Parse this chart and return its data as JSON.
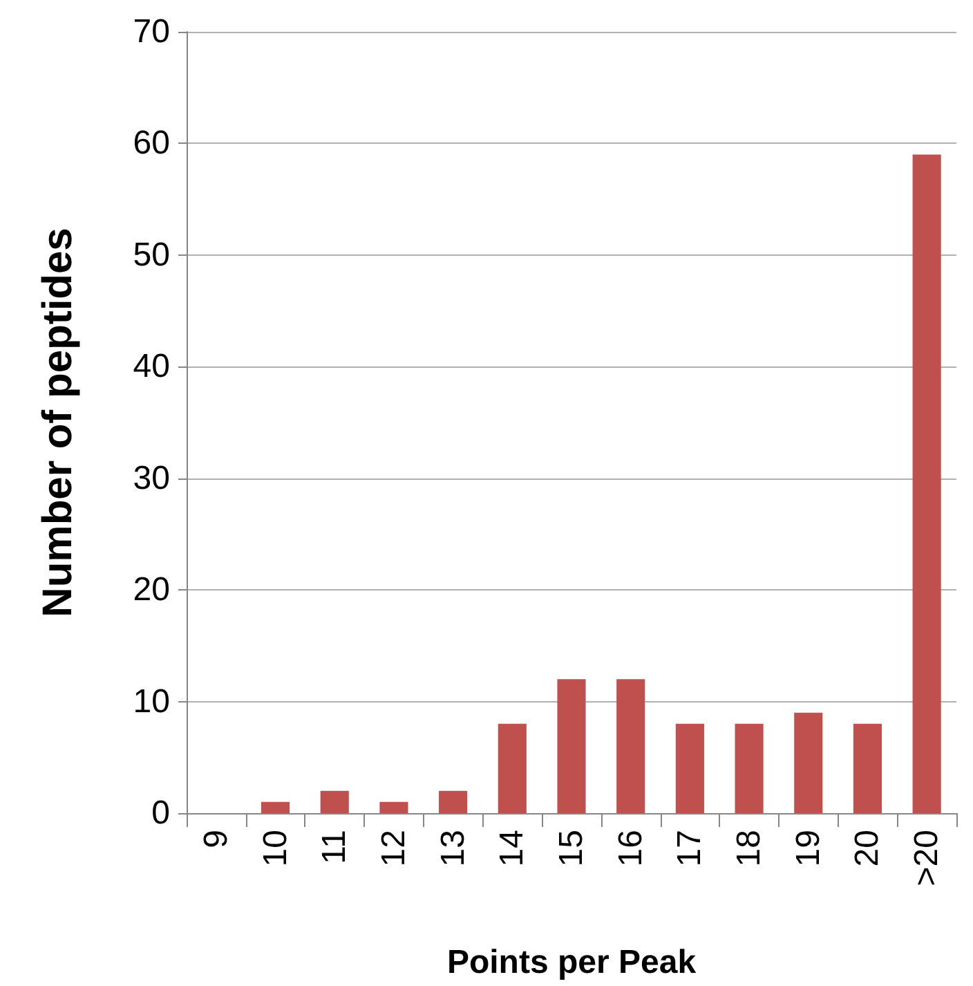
{
  "chart_data": {
    "type": "bar",
    "xlabel": "Points per Peak",
    "ylabel": "Number of peptides",
    "categories": [
      "9",
      "10",
      "11",
      "12",
      "13",
      "14",
      "15",
      "16",
      "17",
      "18",
      "19",
      "20",
      ">20"
    ],
    "values": [
      0,
      1,
      2,
      1,
      2,
      8,
      12,
      12,
      8,
      8,
      9,
      8,
      59
    ],
    "color": "#c0504d",
    "ylim": [
      0,
      70
    ],
    "yticks": [
      0,
      10,
      20,
      30,
      40,
      50,
      60,
      70
    ],
    "grid": "y"
  }
}
